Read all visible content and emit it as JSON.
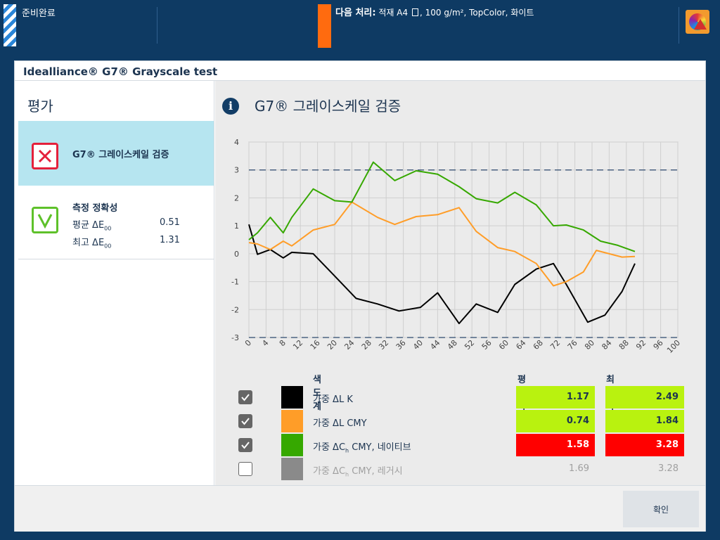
{
  "topbar": {
    "ready_label": "준비완료",
    "next_label": "다음 처리:",
    "next_detail_pre": " 적재 A4",
    "next_detail_post": ", 100 g/m², TopColor, 화이트",
    "icons": [
      "striped-status-icon",
      "document-icon",
      "color-warning-icon"
    ],
    "accent_color": "#ff6b0f"
  },
  "dialog": {
    "title": "Idealliance® G7® Grayscale test",
    "confirm_label": "확인"
  },
  "left": {
    "title": "평가",
    "items": [
      {
        "label": "G7® 그레이스케일 검증",
        "status": "fail"
      },
      {
        "label": "측정 정확성",
        "status": "pass"
      }
    ],
    "metrics": [
      {
        "label": "평균 ΔE",
        "sub": "00",
        "value": "0.51"
      },
      {
        "label": "최고 ΔE",
        "sub": "00",
        "value": "1.31"
      }
    ]
  },
  "right": {
    "title": "G7® 그레이스케일 검증",
    "table": {
      "header_name": "색도계",
      "header_avg": "평균 차이",
      "header_max": "최고 차이",
      "rows": [
        {
          "pre": "가중 ΔL K",
          "sub": "",
          "post": "",
          "checked": true,
          "color": "#000000",
          "avg": "1.17",
          "max": "2.49",
          "avg_bg": "#b9f20f",
          "max_bg": "#b9f20f",
          "avg_fg": "#1c3450",
          "max_fg": "#1c3450"
        },
        {
          "pre": "가중 ΔL CMY",
          "sub": "",
          "post": "",
          "checked": true,
          "color": "#ff9d28",
          "avg": "0.74",
          "max": "1.84",
          "avg_bg": "#b9f20f",
          "max_bg": "#b9f20f",
          "avg_fg": "#1c3450",
          "max_fg": "#1c3450"
        },
        {
          "pre": "가중 ΔC",
          "sub": "h",
          "post": " CMY, 네이티브",
          "checked": true,
          "color": "#36a800",
          "avg": "1.58",
          "max": "3.28",
          "avg_bg": "#ff0000",
          "max_bg": "#ff0000",
          "avg_fg": "#ffffff",
          "max_fg": "#ffffff"
        },
        {
          "pre": "가중 ΔC",
          "sub": "h",
          "post": " CMY, 레거시",
          "checked": false,
          "color": "#8a8a8a",
          "avg": "1.69",
          "max": "3.28",
          "avg_bg": "",
          "max_bg": "",
          "avg_fg": "#a0a0a0",
          "max_fg": "#a0a0a0"
        }
      ]
    }
  },
  "chart_data": {
    "type": "line",
    "x": [
      0,
      4,
      8,
      12,
      16,
      20,
      24,
      28,
      32,
      36,
      40,
      44,
      48,
      52,
      56,
      60,
      64,
      68,
      72,
      76,
      80,
      84,
      88,
      92,
      96,
      100
    ],
    "xlim": [
      0,
      100
    ],
    "ylim": [
      -3,
      4
    ],
    "y_ticks": [
      -3,
      -2,
      -1,
      0,
      1,
      2,
      3,
      4
    ],
    "tolerance_lines": [
      3,
      -3
    ],
    "grid": true,
    "series": [
      {
        "color": "#000000",
        "points": [
          [
            0,
            1.05
          ],
          [
            2,
            -0.02
          ],
          [
            5,
            0.15
          ],
          [
            8,
            -0.15
          ],
          [
            10,
            0.05
          ],
          [
            15,
            0.0
          ],
          [
            20,
            -0.8
          ],
          [
            25,
            -1.6
          ],
          [
            30,
            -1.8
          ],
          [
            35,
            -2.05
          ],
          [
            40,
            -1.92
          ],
          [
            44,
            -1.4
          ],
          [
            49,
            -2.5
          ],
          [
            53,
            -1.8
          ],
          [
            58,
            -2.1
          ],
          [
            62,
            -1.1
          ],
          [
            67,
            -0.55
          ],
          [
            71,
            -0.35
          ],
          [
            74,
            -1.1
          ],
          [
            79,
            -2.45
          ],
          [
            83,
            -2.2
          ],
          [
            87,
            -1.35
          ],
          [
            90,
            -0.35
          ]
        ]
      },
      {
        "color": "#ff9d28",
        "points": [
          [
            0,
            0.4
          ],
          [
            2,
            0.35
          ],
          [
            5,
            0.15
          ],
          [
            8,
            0.45
          ],
          [
            10,
            0.28
          ],
          [
            15,
            0.85
          ],
          [
            20,
            1.05
          ],
          [
            24,
            1.85
          ],
          [
            30,
            1.3
          ],
          [
            34,
            1.05
          ],
          [
            39,
            1.33
          ],
          [
            44,
            1.4
          ],
          [
            49,
            1.65
          ],
          [
            53,
            0.8
          ],
          [
            58,
            0.22
          ],
          [
            62,
            0.08
          ],
          [
            67,
            -0.35
          ],
          [
            71,
            -1.15
          ],
          [
            74,
            -1.0
          ],
          [
            78,
            -0.65
          ],
          [
            81,
            0.12
          ],
          [
            87,
            -0.12
          ],
          [
            90,
            -0.1
          ]
        ]
      },
      {
        "color": "#36a800",
        "points": [
          [
            0,
            0.5
          ],
          [
            2,
            0.75
          ],
          [
            5,
            1.3
          ],
          [
            8,
            0.75
          ],
          [
            10,
            1.3
          ],
          [
            15,
            2.32
          ],
          [
            20,
            1.9
          ],
          [
            24,
            1.85
          ],
          [
            29,
            3.28
          ],
          [
            34,
            2.62
          ],
          [
            39,
            2.97
          ],
          [
            44,
            2.85
          ],
          [
            49,
            2.4
          ],
          [
            53,
            1.97
          ],
          [
            58,
            1.82
          ],
          [
            62,
            2.2
          ],
          [
            67,
            1.75
          ],
          [
            71,
            1.0
          ],
          [
            74,
            1.03
          ],
          [
            78,
            0.85
          ],
          [
            82,
            0.45
          ],
          [
            86,
            0.3
          ],
          [
            90,
            0.08
          ]
        ]
      }
    ]
  }
}
